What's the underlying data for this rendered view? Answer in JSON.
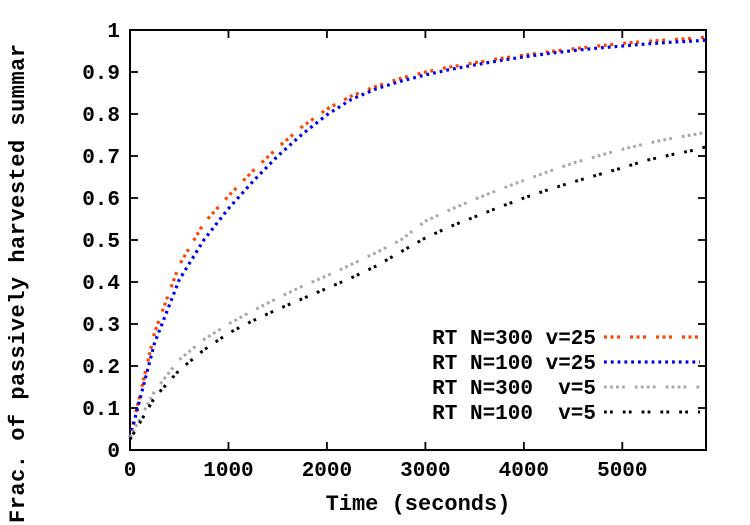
{
  "figure": {
    "background": "#ffffff",
    "frame_color": "#000000"
  },
  "chart_data": {
    "type": "line",
    "title": "",
    "xlabel": "Time (seconds)",
    "ylabel": "Frac. of passively harvested summar",
    "xlim": [
      0,
      5850
    ],
    "ylim": [
      0,
      1
    ],
    "x_ticks": [
      0,
      1000,
      2000,
      3000,
      4000,
      5000
    ],
    "y_ticks": [
      0,
      0.1,
      0.2,
      0.3,
      0.4,
      0.5,
      0.6,
      0.7,
      0.8,
      0.9,
      1
    ],
    "grid": false,
    "legend": {
      "position": "inside bottom-right"
    },
    "x": [
      0,
      250,
      500,
      750,
      1000,
      1250,
      1500,
      1750,
      2000,
      2250,
      2500,
      2750,
      3000,
      3250,
      3500,
      3750,
      4000,
      4250,
      4500,
      4750,
      5000,
      5250,
      5500,
      5750,
      5850
    ],
    "series": [
      {
        "name": "RT N=300 v=25",
        "color": "#ff4400",
        "dash_pattern": "3 3.5 3 3.5 3 10",
        "stroke_width": 3.2,
        "values": [
          0.03,
          0.28,
          0.44,
          0.54,
          0.605,
          0.665,
          0.72,
          0.77,
          0.812,
          0.843,
          0.866,
          0.885,
          0.9,
          0.912,
          0.922,
          0.932,
          0.94,
          0.948,
          0.955,
          0.962,
          0.968,
          0.973,
          0.977,
          0.981,
          0.983
        ]
      },
      {
        "name": "RT N=100 v=25",
        "color": "#0000ee",
        "dash_pattern": "2.8 4",
        "stroke_width": 3.2,
        "values": [
          0.03,
          0.255,
          0.405,
          0.5,
          0.575,
          0.64,
          0.7,
          0.752,
          0.798,
          0.835,
          0.86,
          0.878,
          0.893,
          0.906,
          0.917,
          0.927,
          0.936,
          0.944,
          0.951,
          0.957,
          0.962,
          0.967,
          0.971,
          0.974,
          0.976
        ]
      },
      {
        "name": "RT N=300  v=5",
        "color": "#a8a8a8",
        "dash_pattern": "2.8 3.2 2.8 3.2 2.8 3.2 2.8 10",
        "stroke_width": 3,
        "values": [
          0.03,
          0.14,
          0.215,
          0.263,
          0.3,
          0.332,
          0.362,
          0.39,
          0.415,
          0.442,
          0.47,
          0.5,
          0.545,
          0.572,
          0.597,
          0.62,
          0.642,
          0.663,
          0.683,
          0.7,
          0.716,
          0.73,
          0.742,
          0.752,
          0.757
        ]
      },
      {
        "name": "RT N=100  v=5",
        "color": "#000000",
        "dash_pattern": "2.8 3.2 2.8 10",
        "stroke_width": 3,
        "values": [
          0.025,
          0.125,
          0.19,
          0.238,
          0.278,
          0.308,
          0.335,
          0.36,
          0.385,
          0.41,
          0.438,
          0.472,
          0.505,
          0.532,
          0.555,
          0.578,
          0.6,
          0.62,
          0.638,
          0.655,
          0.672,
          0.69,
          0.703,
          0.715,
          0.722
        ]
      }
    ]
  }
}
